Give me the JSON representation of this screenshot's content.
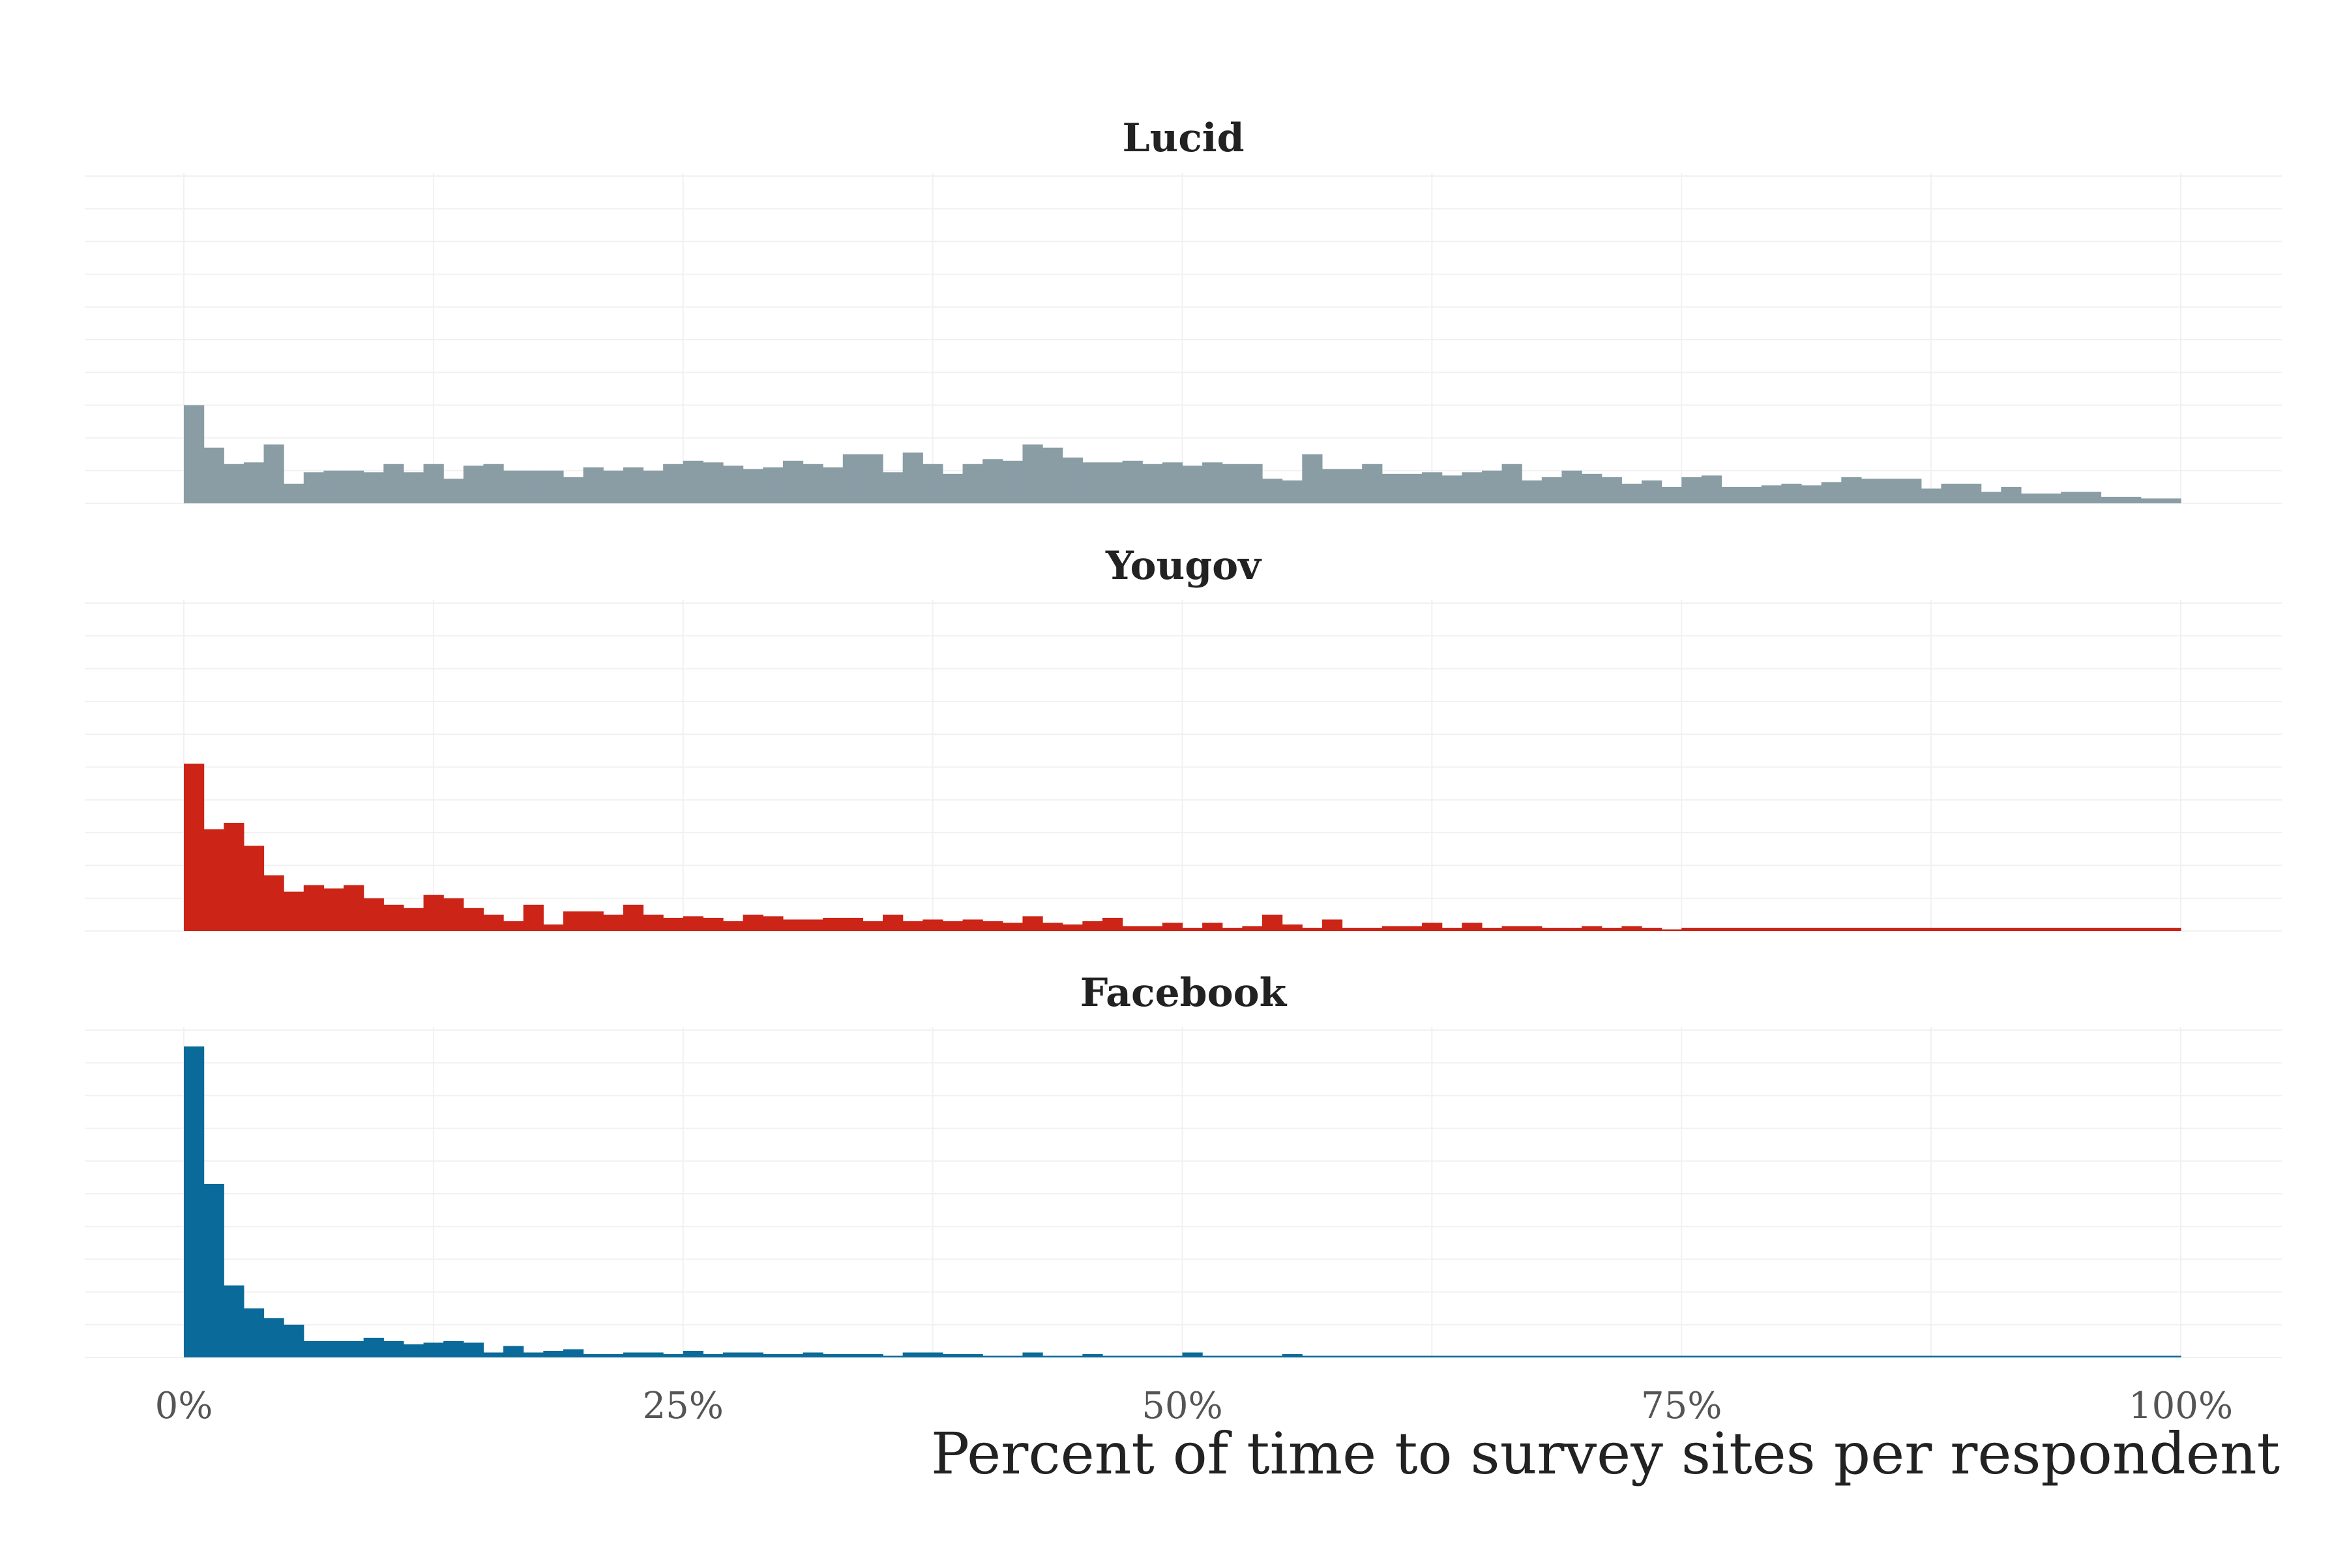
{
  "colors": {
    "lucid": "#8a9da5",
    "yougov": "#cc2416",
    "facebook": "#0a6a9a",
    "grid": "#f1f1f1"
  },
  "chart_data": {
    "type": "bar",
    "xlabel": "Percent of time to survey sites per respondent",
    "xlim": [
      0,
      100
    ],
    "x_ticks": [
      "0%",
      "25%",
      "50%",
      "75%",
      "100%"
    ],
    "x_tick_values": [
      0,
      25,
      50,
      75,
      100
    ],
    "bin_width": 1,
    "grid": true,
    "y_tick_labels_shown": false,
    "panels": [
      {
        "name": "Lucid",
        "color": "#8a9da5",
        "ymax": 100,
        "values": [
          30,
          17,
          12,
          12.5,
          18,
          6,
          9.5,
          10,
          10,
          9.5,
          12,
          9.5,
          12,
          7.5,
          11.5,
          12,
          10,
          10,
          10,
          8,
          11,
          10,
          11,
          10,
          12,
          13,
          12.5,
          11.5,
          10.5,
          11,
          13,
          12,
          11,
          15,
          15,
          9.5,
          15.5,
          12,
          9,
          12,
          13.5,
          13,
          18,
          17,
          14,
          12.5,
          12.5,
          13,
          12,
          12.5,
          11.5,
          12.5,
          12,
          12,
          7.5,
          7,
          15,
          10.5,
          10.5,
          12,
          9,
          9,
          9.5,
          8.5,
          9.5,
          10,
          12,
          7,
          8,
          10,
          9,
          8,
          6,
          7,
          5,
          8,
          8.5,
          5,
          5,
          5.5,
          6,
          5.5,
          6.5,
          8,
          7.5,
          7.5,
          7.5,
          4.5,
          6,
          6,
          3.5,
          5,
          3,
          3,
          3.5,
          3.5,
          2,
          2,
          1.5,
          1.5
        ]
      },
      {
        "name": "Yougov",
        "color": "#cc2416",
        "ymax": 100,
        "values": [
          51,
          31,
          33,
          26,
          17,
          12,
          14,
          13,
          14,
          10,
          8,
          7,
          11,
          10,
          7,
          5,
          3,
          8,
          2,
          6,
          6,
          5,
          8,
          5,
          4,
          4.5,
          4,
          3,
          5,
          4.5,
          3.5,
          3.5,
          4,
          4,
          3,
          5,
          3,
          3.5,
          3,
          3.5,
          3,
          2.5,
          4.5,
          2.5,
          2,
          3,
          4,
          1.5,
          1.5,
          2.5,
          1,
          2.5,
          1,
          1.5,
          5,
          2,
          1,
          3.5,
          1,
          1,
          1.5,
          1.5,
          2.5,
          1,
          2.5,
          1,
          1.5,
          1.5,
          1,
          1,
          1.5,
          1,
          1.5,
          1,
          0.5,
          1,
          1,
          1,
          1,
          1,
          1,
          1,
          1,
          1,
          1,
          1,
          1,
          1,
          1,
          1,
          1,
          1,
          1,
          1,
          1,
          1,
          1,
          1,
          1,
          1
        ]
      },
      {
        "name": "Facebook",
        "color": "#0a6a9a",
        "ymax": 100,
        "values": [
          95,
          53,
          22,
          15,
          12,
          10,
          5,
          5,
          5,
          6,
          5,
          4,
          4.5,
          5,
          4.5,
          1.5,
          3.5,
          1.5,
          2,
          2.5,
          1,
          1,
          1.5,
          1.5,
          1,
          2,
          1,
          1.5,
          1.5,
          1,
          1,
          1.5,
          1,
          1,
          1,
          0.5,
          1.5,
          1.5,
          1,
          1,
          0.5,
          0.5,
          1.5,
          0.5,
          0.5,
          1,
          0.5,
          0.5,
          0.5,
          0.5,
          1.5,
          0.5,
          0.5,
          0.5,
          0.5,
          1,
          0.5,
          0.5,
          0.5,
          0.5,
          0.5,
          0.5,
          0.5,
          0.5,
          0.5,
          0.5,
          0.5,
          0.5,
          0.5,
          0.5,
          0.5,
          0.5,
          0.5,
          0.5,
          0.5,
          0.5,
          0.5,
          0.5,
          0.5,
          0.5,
          0.5,
          0.5,
          0.5,
          0.5,
          0.5,
          0.5,
          0.5,
          0.5,
          0.5,
          0.5,
          0.5,
          0.5,
          0.5,
          0.5,
          0.5,
          0.5,
          0.5,
          0.5,
          0.5,
          0.5
        ]
      }
    ]
  }
}
